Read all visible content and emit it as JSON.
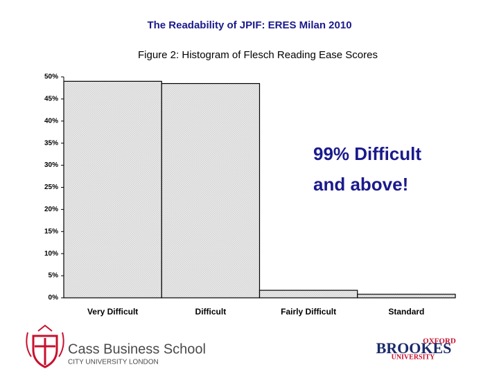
{
  "slide_title": "The Readability of JPIF: ERES Milan 2010",
  "chart_data": {
    "type": "bar",
    "title": "Figure 2: Histogram of Flesch Reading Ease Scores",
    "categories": [
      "Very Difficult",
      "Difficult",
      "Fairly Difficult",
      "Standard"
    ],
    "values": [
      49,
      48.5,
      1.7,
      0.8
    ],
    "color": "#e4e4e4",
    "ylim": [
      0,
      50
    ],
    "yticks": [
      {
        "value": 0,
        "label": "0%"
      },
      {
        "value": 5,
        "label": "5%"
      },
      {
        "value": 10,
        "label": "10%"
      },
      {
        "value": 15,
        "label": "15%"
      },
      {
        "value": 20,
        "label": "20%"
      },
      {
        "value": 25,
        "label": "25%"
      },
      {
        "value": 30,
        "label": "30%"
      },
      {
        "value": 35,
        "label": "35%"
      },
      {
        "value": 40,
        "label": "40%"
      },
      {
        "value": 45,
        "label": "45%"
      },
      {
        "value": 50,
        "label": "50%"
      }
    ],
    "annotation": "99% Difficult and above!"
  },
  "logos": {
    "cass_name": "Cass Business School",
    "cass_sub": "CITY UNIVERSITY LONDON",
    "oxford_top": "OXFORD",
    "oxford_main": "BROOKES",
    "oxford_bottom": "UNIVERSITY"
  }
}
